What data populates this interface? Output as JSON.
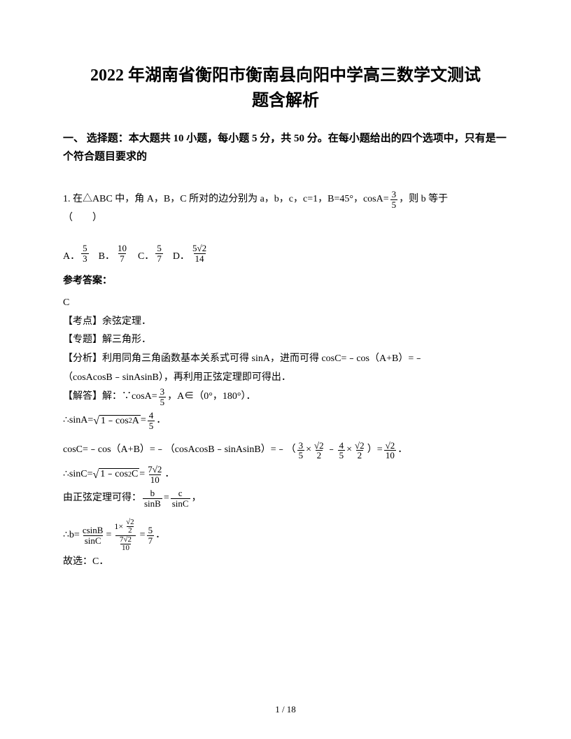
{
  "colors": {
    "text": "#000000",
    "background": "#ffffff",
    "rule": "#000000"
  },
  "typography": {
    "title_fontsize": 24,
    "title_weight": "bold",
    "section_fontsize": 15,
    "section_weight": "bold",
    "body_fontsize": 14,
    "answer_weight": "bold",
    "frac_fontsize": 13,
    "footer_fontsize": 13,
    "font_family": "SimSun"
  },
  "title": {
    "line1": "2022 年湖南省衡阳市衡南县向阳中学高三数学文测试",
    "line2": "题含解析"
  },
  "section": "一、 选择题：本大题共 10 小题，每小题 5 分，共 50 分。在每小题给出的四个选项中，只有是一个符合题目要求的",
  "q1": {
    "stem_pre": "1. 在△ABC 中，角 A，B，C 所对的边分别为 a，b，c，c=1，B=45°，cosA=",
    "stem_frac": {
      "num": "3",
      "den": "5"
    },
    "stem_post": "，则 b 等于",
    "paren": "（　　）",
    "options": {
      "A_label": "A．",
      "A": {
        "num": "5",
        "den": "3"
      },
      "B_label": "B．",
      "B": {
        "num": "10",
        "den": "7"
      },
      "C_label": "C．",
      "C": {
        "num": "5",
        "den": "7"
      },
      "D_label": "D．",
      "D": {
        "num": "5√2",
        "den": "14"
      }
    }
  },
  "ans_head": "参考答案：",
  "ans_letter": "C",
  "tags": {
    "kaodian": "【考点】余弦定理．",
    "zhuanti": "【专题】解三角形．",
    "fenxi": "【分析】利用同角三角函数基本关系式可得 sinA，进而可得 cosC=﹣cos（A+B）=﹣",
    "fenxi2": "（cosAcosB﹣sinAsinB），再利用正弦定理即可得出．",
    "jieda_pre": "【解答】解：∵cosA=",
    "jieda_frac": {
      "num": "3",
      "den": "5"
    },
    "jieda_post": "，A∈（0°，180°）．"
  },
  "eq_sinA": {
    "pre": "∴sinA=",
    "radicand": "1﹣cos²A",
    "eq": "=",
    "val": {
      "num": "4",
      "den": "5"
    },
    "post": "．"
  },
  "eq_cosC": {
    "lhs": "cosC=﹣cos（A+B）=﹣（cosAcosB﹣sinAsinB）=﹣",
    "open": "（",
    "t1a": {
      "num": "3",
      "den": "5"
    },
    "times1": "×",
    "t1b": {
      "num": "√2",
      "den": "2"
    },
    "minus": "﹣",
    "t2a": {
      "num": "4",
      "den": "5"
    },
    "times2": "×",
    "t2b": {
      "num": "√2",
      "den": "2"
    },
    "close": "）",
    "eq": "=",
    "val": {
      "num": "√2",
      "den": "10"
    },
    "post": "．"
  },
  "eq_sinC": {
    "pre": "∴sinC=",
    "radicand": "1﹣cos²C",
    "eq": "=",
    "val": {
      "num": "7√2",
      "den": "10"
    },
    "post": "．"
  },
  "eq_sine_law": {
    "pre": "由正弦定理可得：",
    "l": {
      "num": "b",
      "den": "sinB"
    },
    "eq": "=",
    "r": {
      "num": "c",
      "den": "sinC"
    },
    "post": "，"
  },
  "eq_b": {
    "pre": "∴b=",
    "frac1": {
      "num": "csinB",
      "den": "sinC"
    },
    "eq1": "=",
    "big": {
      "top_num": "√2",
      "top_den": "2",
      "top_coeff": "1×",
      "bot_num": "7√2",
      "bot_den": "10"
    },
    "eq2": "=",
    "val": {
      "num": "5",
      "den": "7"
    },
    "post": "．"
  },
  "final": "故选：C．",
  "footer": "1 / 18"
}
